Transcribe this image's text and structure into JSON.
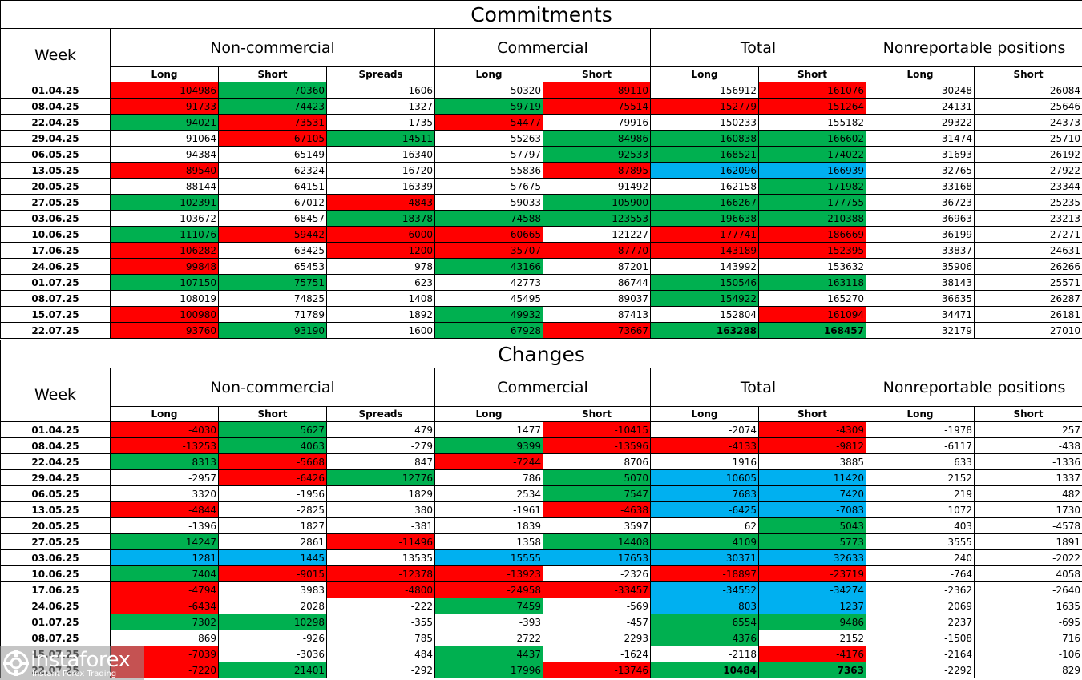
{
  "colors": {
    "red": "#ff0000",
    "green": "#00b050",
    "blue": "#00b0f0"
  },
  "logo": {
    "name": "instaforex",
    "tagline": "Instant Forex Trading",
    "icon": "instaforex-logo-icon"
  },
  "headers": {
    "week": "Week",
    "groups": [
      "Non-commercial",
      "Commercial",
      "Total",
      "Nonreportable positions"
    ],
    "sub": [
      "Long",
      "Short",
      "Spreads",
      "Long",
      "Short",
      "Long",
      "Short",
      "Long",
      "Short"
    ]
  },
  "commitments": {
    "title": "Commitments",
    "rows": [
      {
        "week": "01.04.25",
        "values": [
          "104986",
          "70360",
          "1606",
          "50320",
          "89110",
          "156912",
          "161076",
          "30248",
          "26084"
        ],
        "colors": [
          "r",
          "g",
          "",
          "",
          "r",
          "",
          "r",
          "",
          ""
        ]
      },
      {
        "week": "08.04.25",
        "values": [
          "91733",
          "74423",
          "1327",
          "59719",
          "75514",
          "152779",
          "151264",
          "24131",
          "25646"
        ],
        "colors": [
          "r",
          "g",
          "",
          "g",
          "r",
          "r",
          "r",
          "",
          ""
        ]
      },
      {
        "week": "22.04.25",
        "values": [
          "94021",
          "73531",
          "1735",
          "54477",
          "79916",
          "150233",
          "155182",
          "29322",
          "24373"
        ],
        "colors": [
          "g",
          "r",
          "",
          "r",
          "",
          "",
          "",
          "",
          ""
        ]
      },
      {
        "week": "29.04.25",
        "values": [
          "91064",
          "67105",
          "14511",
          "55263",
          "84986",
          "160838",
          "166602",
          "31474",
          "25710"
        ],
        "colors": [
          "",
          "r",
          "g",
          "",
          "g",
          "g",
          "g",
          "",
          ""
        ]
      },
      {
        "week": "06.05.25",
        "values": [
          "94384",
          "65149",
          "16340",
          "57797",
          "92533",
          "168521",
          "174022",
          "31693",
          "26192"
        ],
        "colors": [
          "",
          "",
          "",
          "",
          "g",
          "g",
          "g",
          "",
          ""
        ]
      },
      {
        "week": "13.05.25",
        "values": [
          "89540",
          "62324",
          "16720",
          "55836",
          "87895",
          "162096",
          "166939",
          "32765",
          "27922"
        ],
        "colors": [
          "r",
          "",
          "",
          "",
          "r",
          "b",
          "b",
          "",
          ""
        ]
      },
      {
        "week": "20.05.25",
        "values": [
          "88144",
          "64151",
          "16339",
          "57675",
          "91492",
          "162158",
          "171982",
          "33168",
          "23344"
        ],
        "colors": [
          "",
          "",
          "",
          "",
          "",
          "",
          "g",
          "",
          ""
        ]
      },
      {
        "week": "27.05.25",
        "values": [
          "102391",
          "67012",
          "4843",
          "59033",
          "105900",
          "166267",
          "177755",
          "36723",
          "25235"
        ],
        "colors": [
          "g",
          "",
          "r",
          "",
          "g",
          "g",
          "g",
          "",
          ""
        ]
      },
      {
        "week": "03.06.25",
        "values": [
          "103672",
          "68457",
          "18378",
          "74588",
          "123553",
          "196638",
          "210388",
          "36963",
          "23213"
        ],
        "colors": [
          "",
          "",
          "g",
          "g",
          "g",
          "g",
          "g",
          "",
          ""
        ]
      },
      {
        "week": "10.06.25",
        "values": [
          "111076",
          "59442",
          "6000",
          "60665",
          "121227",
          "177741",
          "186669",
          "36199",
          "27271"
        ],
        "colors": [
          "g",
          "r",
          "r",
          "r",
          "",
          "r",
          "r",
          "",
          ""
        ]
      },
      {
        "week": "17.06.25",
        "values": [
          "106282",
          "63425",
          "1200",
          "35707",
          "87770",
          "143189",
          "152395",
          "33837",
          "24631"
        ],
        "colors": [
          "r",
          "",
          "r",
          "r",
          "r",
          "r",
          "r",
          "",
          ""
        ]
      },
      {
        "week": "24.06.25",
        "values": [
          "99848",
          "65453",
          "978",
          "43166",
          "87201",
          "143992",
          "153632",
          "35906",
          "26266"
        ],
        "colors": [
          "r",
          "",
          "",
          "g",
          "",
          "",
          "",
          "",
          ""
        ]
      },
      {
        "week": "01.07.25",
        "values": [
          "107150",
          "75751",
          "623",
          "42773",
          "86744",
          "150546",
          "163118",
          "38143",
          "25571"
        ],
        "colors": [
          "g",
          "g",
          "",
          "",
          "",
          "g",
          "g",
          "",
          ""
        ]
      },
      {
        "week": "08.07.25",
        "values": [
          "108019",
          "74825",
          "1408",
          "45495",
          "89037",
          "154922",
          "165270",
          "36635",
          "26287"
        ],
        "colors": [
          "",
          "",
          "",
          "",
          "",
          "g",
          "",
          "",
          ""
        ]
      },
      {
        "week": "15.07.25",
        "values": [
          "100980",
          "71789",
          "1892",
          "49932",
          "87413",
          "152804",
          "161094",
          "34471",
          "26181"
        ],
        "colors": [
          "r",
          "",
          "",
          "g",
          "",
          "",
          "r",
          "",
          ""
        ]
      },
      {
        "week": "22.07.25",
        "values": [
          "93760",
          "93190",
          "1600",
          "67928",
          "73667",
          "163288",
          "168457",
          "32179",
          "27010"
        ],
        "colors": [
          "r",
          "g",
          "",
          "g",
          "r",
          "g",
          "g",
          "",
          ""
        ],
        "bold": [
          false,
          false,
          false,
          false,
          false,
          true,
          true,
          false,
          false
        ]
      }
    ]
  },
  "changes": {
    "title": "Changes",
    "rows": [
      {
        "week": "01.04.25",
        "values": [
          "-4030",
          "5627",
          "479",
          "1477",
          "-10415",
          "-2074",
          "-4309",
          "-1978",
          "257"
        ],
        "colors": [
          "r",
          "g",
          "",
          "",
          "r",
          "",
          "r",
          "",
          ""
        ]
      },
      {
        "week": "08.04.25",
        "values": [
          "-13253",
          "4063",
          "-279",
          "9399",
          "-13596",
          "-4133",
          "-9812",
          "-6117",
          "-438"
        ],
        "colors": [
          "r",
          "g",
          "",
          "g",
          "r",
          "r",
          "r",
          "",
          ""
        ]
      },
      {
        "week": "22.04.25",
        "values": [
          "8313",
          "-5668",
          "847",
          "-7244",
          "8706",
          "1916",
          "3885",
          "633",
          "-1336"
        ],
        "colors": [
          "g",
          "r",
          "",
          "r",
          "",
          "",
          "",
          "",
          ""
        ]
      },
      {
        "week": "29.04.25",
        "values": [
          "-2957",
          "-6426",
          "12776",
          "786",
          "5070",
          "10605",
          "11420",
          "2152",
          "1337"
        ],
        "colors": [
          "",
          "r",
          "g",
          "",
          "g",
          "b",
          "b",
          "",
          ""
        ]
      },
      {
        "week": "06.05.25",
        "values": [
          "3320",
          "-1956",
          "1829",
          "2534",
          "7547",
          "7683",
          "7420",
          "219",
          "482"
        ],
        "colors": [
          "",
          "",
          "",
          "",
          "g",
          "b",
          "b",
          "",
          ""
        ]
      },
      {
        "week": "13.05.25",
        "values": [
          "-4844",
          "-2825",
          "380",
          "-1961",
          "-4638",
          "-6425",
          "-7083",
          "1072",
          "1730"
        ],
        "colors": [
          "r",
          "",
          "",
          "",
          "r",
          "b",
          "b",
          "",
          ""
        ]
      },
      {
        "week": "20.05.25",
        "values": [
          "-1396",
          "1827",
          "-381",
          "1839",
          "3597",
          "62",
          "5043",
          "403",
          "-4578"
        ],
        "colors": [
          "",
          "",
          "",
          "",
          "",
          "",
          "g",
          "",
          ""
        ]
      },
      {
        "week": "27.05.25",
        "values": [
          "14247",
          "2861",
          "-11496",
          "1358",
          "14408",
          "4109",
          "5773",
          "3555",
          "1891"
        ],
        "colors": [
          "g",
          "",
          "r",
          "",
          "g",
          "g",
          "g",
          "",
          ""
        ]
      },
      {
        "week": "03.06.25",
        "values": [
          "1281",
          "1445",
          "13535",
          "15555",
          "17653",
          "30371",
          "32633",
          "240",
          "-2022"
        ],
        "colors": [
          "b",
          "b",
          "",
          "b",
          "b",
          "b",
          "b",
          "",
          ""
        ]
      },
      {
        "week": "10.06.25",
        "values": [
          "7404",
          "-9015",
          "-12378",
          "-13923",
          "-2326",
          "-18897",
          "-23719",
          "-764",
          "4058"
        ],
        "colors": [
          "g",
          "r",
          "r",
          "r",
          "",
          "r",
          "r",
          "",
          ""
        ]
      },
      {
        "week": "17.06.25",
        "values": [
          "-4794",
          "3983",
          "-4800",
          "-24958",
          "-33457",
          "-34552",
          "-34274",
          "-2362",
          "-2640"
        ],
        "colors": [
          "r",
          "",
          "r",
          "r",
          "r",
          "b",
          "b",
          "",
          ""
        ]
      },
      {
        "week": "24.06.25",
        "values": [
          "-6434",
          "2028",
          "-222",
          "7459",
          "-569",
          "803",
          "1237",
          "2069",
          "1635"
        ],
        "colors": [
          "r",
          "",
          "",
          "g",
          "",
          "b",
          "b",
          "",
          ""
        ]
      },
      {
        "week": "01.07.25",
        "values": [
          "7302",
          "10298",
          "-355",
          "-393",
          "-457",
          "6554",
          "9486",
          "2237",
          "-695"
        ],
        "colors": [
          "g",
          "g",
          "",
          "",
          "",
          "g",
          "g",
          "",
          ""
        ]
      },
      {
        "week": "08.07.25",
        "values": [
          "869",
          "-926",
          "785",
          "2722",
          "2293",
          "4376",
          "2152",
          "-1508",
          "716"
        ],
        "colors": [
          "",
          "",
          "",
          "",
          "",
          "g",
          "",
          "",
          ""
        ]
      },
      {
        "week": "15.07.25",
        "values": [
          "-7039",
          "-3036",
          "484",
          "4437",
          "-1624",
          "-2118",
          "-4176",
          "-2164",
          "-106"
        ],
        "colors": [
          "r",
          "",
          "",
          "g",
          "",
          "",
          "r",
          "",
          ""
        ]
      },
      {
        "week": "22.07.25",
        "values": [
          "-7220",
          "21401",
          "-292",
          "17996",
          "-13746",
          "10484",
          "7363",
          "-2292",
          "829"
        ],
        "colors": [
          "r",
          "g",
          "",
          "g",
          "r",
          "g",
          "g",
          "",
          ""
        ],
        "bold": [
          false,
          false,
          false,
          false,
          false,
          true,
          true,
          false,
          false
        ]
      }
    ]
  }
}
